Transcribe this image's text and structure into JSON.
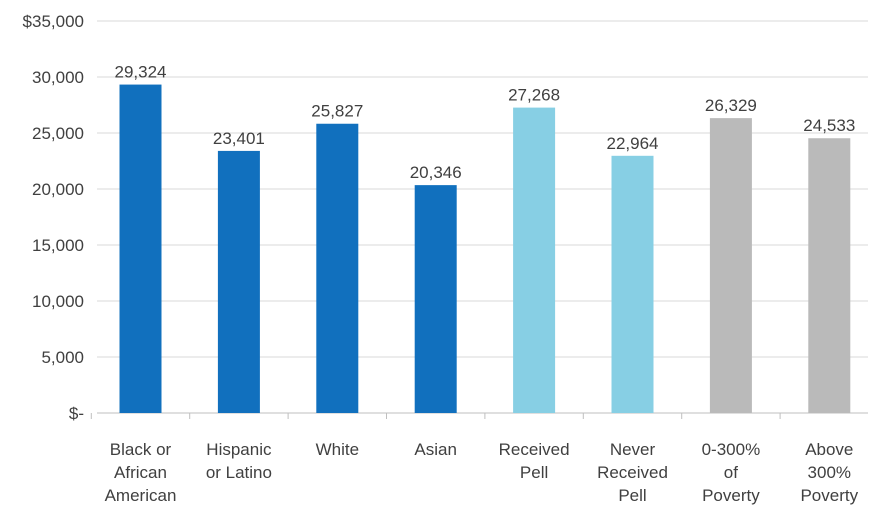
{
  "chart_data": {
    "type": "bar",
    "title": "",
    "xlabel": "",
    "ylabel": "",
    "ylim": [
      0,
      35000
    ],
    "yticks": [
      0,
      5000,
      10000,
      15000,
      20000,
      25000,
      30000,
      35000
    ],
    "ytick_labels": [
      "$-",
      "5,000",
      "10,000",
      "15,000",
      "20,000",
      "25,000",
      "30,000",
      "$35,000"
    ],
    "grid": true,
    "legend": "none",
    "categories": [
      [
        "Black or",
        "African",
        "American"
      ],
      [
        "Hispanic",
        "or Latino"
      ],
      [
        "White"
      ],
      [
        "Asian"
      ],
      [
        "Received",
        "Pell"
      ],
      [
        "Never",
        "Received",
        "Pell"
      ],
      [
        "0-300%",
        "of",
        "Poverty"
      ],
      [
        "Above",
        "300%",
        "Poverty"
      ]
    ],
    "values": [
      29324,
      23401,
      25827,
      20346,
      27268,
      22964,
      26329,
      24533
    ],
    "value_labels": [
      "29,324",
      "23,401",
      "25,827",
      "20,346",
      "27,268",
      "22,964",
      "26,329",
      "24,533"
    ],
    "bar_colors": [
      "#1170be",
      "#1170be",
      "#1170be",
      "#1170be",
      "#87cfe4",
      "#87cfe4",
      "#bababa",
      "#bababa"
    ]
  }
}
